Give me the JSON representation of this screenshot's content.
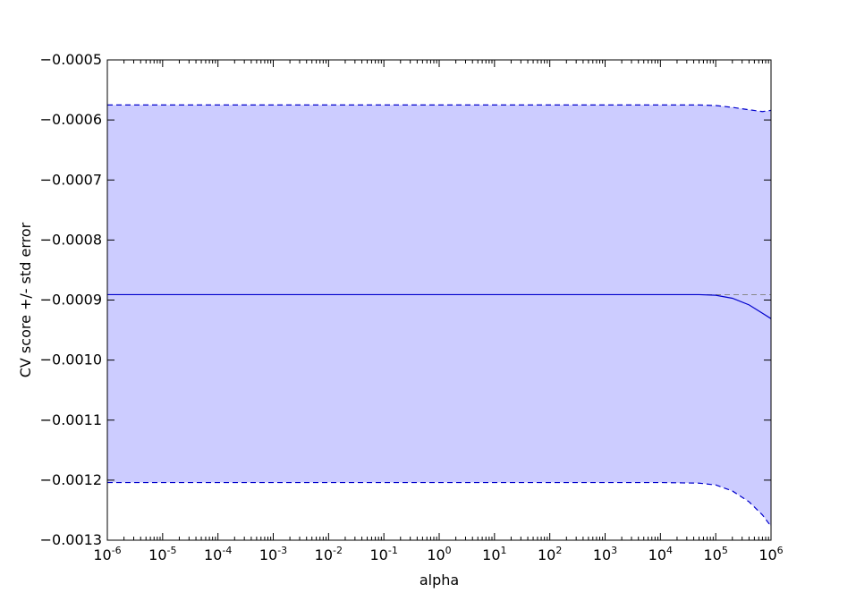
{
  "chart_data": {
    "type": "line",
    "title": "",
    "xlabel": "alpha",
    "ylabel": "CV score +/- std error",
    "xscale": "log",
    "xlim": [
      1e-06,
      1000000.0
    ],
    "ylim": [
      -0.0013,
      -0.0005
    ],
    "grid": false,
    "x_ticks": [
      {
        "base": "10",
        "exp": "-6",
        "value": 1e-06
      },
      {
        "base": "10",
        "exp": "-5",
        "value": 1e-05
      },
      {
        "base": "10",
        "exp": "-4",
        "value": 0.0001
      },
      {
        "base": "10",
        "exp": "-3",
        "value": 0.001
      },
      {
        "base": "10",
        "exp": "-2",
        "value": 0.01
      },
      {
        "base": "10",
        "exp": "-1",
        "value": 0.1
      },
      {
        "base": "10",
        "exp": "0",
        "value": 1
      },
      {
        "base": "10",
        "exp": "1",
        "value": 10
      },
      {
        "base": "10",
        "exp": "2",
        "value": 100
      },
      {
        "base": "10",
        "exp": "3",
        "value": 1000
      },
      {
        "base": "10",
        "exp": "4",
        "value": 10000
      },
      {
        "base": "10",
        "exp": "5",
        "value": 100000
      },
      {
        "base": "10",
        "exp": "6",
        "value": 1000000
      }
    ],
    "y_ticks": [
      {
        "label": "−0.0005",
        "value": -0.0005
      },
      {
        "label": "−0.0006",
        "value": -0.0006
      },
      {
        "label": "−0.0007",
        "value": -0.0007
      },
      {
        "label": "−0.0008",
        "value": -0.0008
      },
      {
        "label": "−0.0009",
        "value": -0.0009
      },
      {
        "label": "−0.0010",
        "value": -0.001
      },
      {
        "label": "−0.0011",
        "value": -0.0011
      },
      {
        "label": "−0.0012",
        "value": -0.0012
      },
      {
        "label": "−0.0013",
        "value": -0.0013
      }
    ],
    "x": [
      1e-06,
      0.0001,
      0.01,
      1,
      100,
      10000,
      50000,
      100000,
      200000,
      400000,
      700000,
      1000000
    ],
    "series": [
      {
        "role": "mean",
        "style": "solid",
        "color": "#0000cc",
        "values": [
          -0.000891,
          -0.000891,
          -0.000891,
          -0.000891,
          -0.000891,
          -0.000891,
          -0.000891,
          -0.000892,
          -0.000897,
          -0.000908,
          -0.000922,
          -0.000931
        ]
      },
      {
        "role": "upper",
        "style": "dashed",
        "color": "#0000cc",
        "values": [
          -0.000575,
          -0.000575,
          -0.000575,
          -0.000575,
          -0.000575,
          -0.000575,
          -0.000575,
          -0.000576,
          -0.000579,
          -0.000583,
          -0.000586,
          -0.000584
        ]
      },
      {
        "role": "lower",
        "style": "dashed",
        "color": "#0000cc",
        "values": [
          -0.001204,
          -0.001204,
          -0.001204,
          -0.001204,
          -0.001204,
          -0.001204,
          -0.001205,
          -0.001208,
          -0.001218,
          -0.001236,
          -0.001258,
          -0.001277
        ]
      }
    ],
    "reference_line": {
      "y": -0.000891,
      "style": "dashed",
      "color": "#888888"
    },
    "fill_color": "#ccccff"
  }
}
